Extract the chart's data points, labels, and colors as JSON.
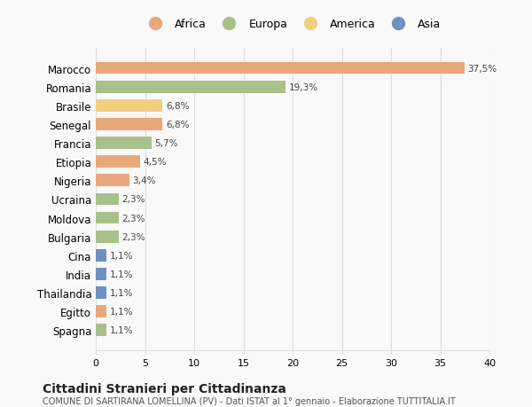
{
  "countries": [
    "Marocco",
    "Romania",
    "Brasile",
    "Senegal",
    "Francia",
    "Etiopia",
    "Nigeria",
    "Ucraina",
    "Moldova",
    "Bulgaria",
    "Cina",
    "India",
    "Thailandia",
    "Egitto",
    "Spagna"
  ],
  "values": [
    37.5,
    19.3,
    6.8,
    6.8,
    5.7,
    4.5,
    3.4,
    2.3,
    2.3,
    2.3,
    1.1,
    1.1,
    1.1,
    1.1,
    1.1
  ],
  "labels": [
    "37,5%",
    "19,3%",
    "6,8%",
    "6,8%",
    "5,7%",
    "4,5%",
    "3,4%",
    "2,3%",
    "2,3%",
    "2,3%",
    "1,1%",
    "1,1%",
    "1,1%",
    "1,1%",
    "1,1%"
  ],
  "continents": [
    "Africa",
    "Europa",
    "America",
    "Africa",
    "Europa",
    "Africa",
    "Africa",
    "Europa",
    "Europa",
    "Europa",
    "Asia",
    "Asia",
    "Asia",
    "Africa",
    "Europa"
  ],
  "colors": {
    "Africa": "#E8A87C",
    "Europa": "#A8C08A",
    "America": "#F0D080",
    "Asia": "#7090C0"
  },
  "legend_order": [
    "Africa",
    "Europa",
    "America",
    "Asia"
  ],
  "title": "Cittadini Stranieri per Cittadinanza",
  "subtitle": "COMUNE DI SARTIRANA LOMELLINA (PV) - Dati ISTAT al 1° gennaio - Elaborazione TUTTITALIA.IT",
  "xlim": [
    0,
    40
  ],
  "xticks": [
    0,
    5,
    10,
    15,
    20,
    25,
    30,
    35,
    40
  ],
  "background_color": "#f9f9f9",
  "grid_color": "#dddddd"
}
